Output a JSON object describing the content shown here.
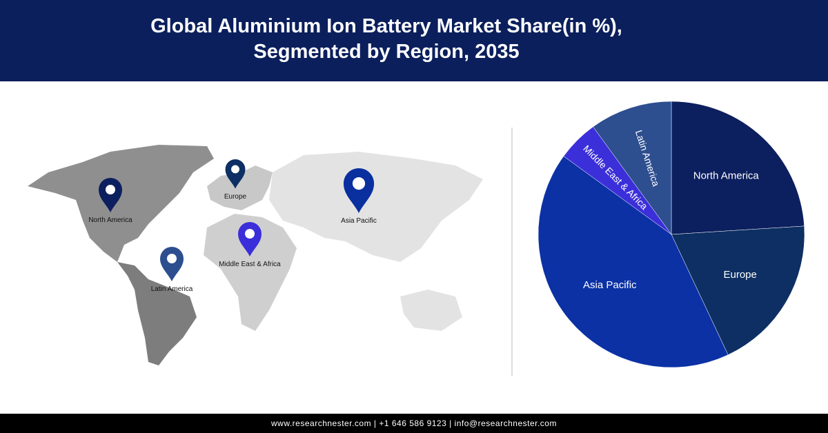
{
  "header": {
    "title": "Global Aluminium Ion Battery Market Share(in %), Segmented by Region, 2035"
  },
  "map": {
    "markers": [
      {
        "label": "North America",
        "color": "#0c1f5e"
      },
      {
        "label": "Europe",
        "color": "#0d2f63"
      },
      {
        "label": "Asia Pacific",
        "color": "#0a2f9e"
      },
      {
        "label": "Middle East & Africa",
        "color": "#3b2fd9"
      },
      {
        "label": "Latin America",
        "color": "#2d4e8f"
      }
    ]
  },
  "chart_data": {
    "type": "pie",
    "categories": [
      "North America",
      "Europe",
      "Asia Pacific",
      "Middle East & Africa",
      "Latin America"
    ],
    "values": [
      24,
      19,
      42,
      5,
      10
    ],
    "colors": [
      "#0c1f5e",
      "#0d2f63",
      "#0b31a5",
      "#3b2fd9",
      "#2d4e8f"
    ]
  },
  "footer": {
    "text": "www.researchnester.com | +1 646 586 9123 | info@researchnester.com"
  }
}
